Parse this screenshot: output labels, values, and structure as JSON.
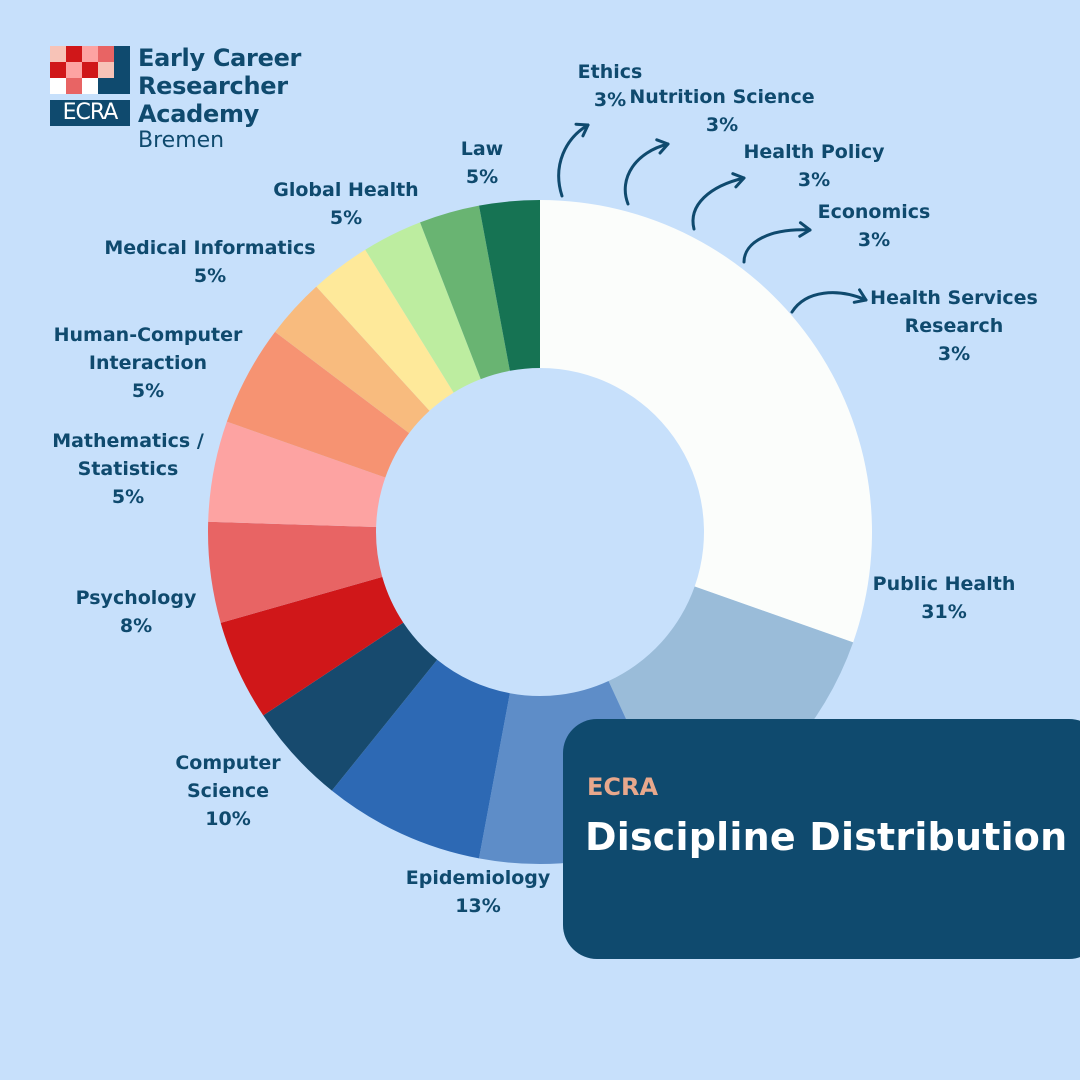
{
  "logo": {
    "mark_text": "ECRA",
    "line1": "Early Career",
    "line2": "Researcher Academy",
    "line3": "Bremen"
  },
  "title": {
    "kicker": "ECRA",
    "main": "Discipline Distribution"
  },
  "chart_data": {
    "type": "pie",
    "variant": "donut",
    "title": "Discipline Distribution",
    "unit": "%",
    "segments": [
      {
        "label": "Public Health",
        "value": 31,
        "display": "31%",
        "color": "#fbfdfb"
      },
      {
        "label": "Epidemiology",
        "value": 13,
        "display": "13%",
        "color": "#9abcd9"
      },
      {
        "label": "Computer Science",
        "value": 10,
        "display": "10%",
        "color": "#5e8dc8"
      },
      {
        "label": "Psychology",
        "value": 8,
        "display": "8%",
        "color": "#2d69b4"
      },
      {
        "label": "Mathematics / Statistics",
        "value": 5,
        "display": "5%",
        "color": "#174a6e"
      },
      {
        "label": "Human-Computer Interaction",
        "value": 5,
        "display": "5%",
        "color": "#d01719"
      },
      {
        "label": "Medical Informatics",
        "value": 5,
        "display": "5%",
        "color": "#e86464"
      },
      {
        "label": "Global Health",
        "value": 5,
        "display": "5%",
        "color": "#fda3a2"
      },
      {
        "label": "Law",
        "value": 5,
        "display": "5%",
        "color": "#f69372"
      },
      {
        "label": "Ethics",
        "value": 3,
        "display": "3%",
        "color": "#f8bb7e"
      },
      {
        "label": "Nutrition Science",
        "value": 3,
        "display": "3%",
        "color": "#fee99a"
      },
      {
        "label": "Health Policy",
        "value": 3,
        "display": "3%",
        "color": "#bdeda0"
      },
      {
        "label": "Economics",
        "value": 3,
        "display": "3%",
        "color": "#69b472"
      },
      {
        "label": "Health Services Research",
        "value": 3,
        "display": "3%",
        "color": "#167353"
      }
    ]
  },
  "colors": {
    "background": "#c7e0fb",
    "navy": "#0f4a6e",
    "kicker": "#e8a88c",
    "logo_squares": [
      "#d01719",
      "#e86464",
      "#fda3a2",
      "#f7c3b7",
      "#ffffff"
    ]
  }
}
